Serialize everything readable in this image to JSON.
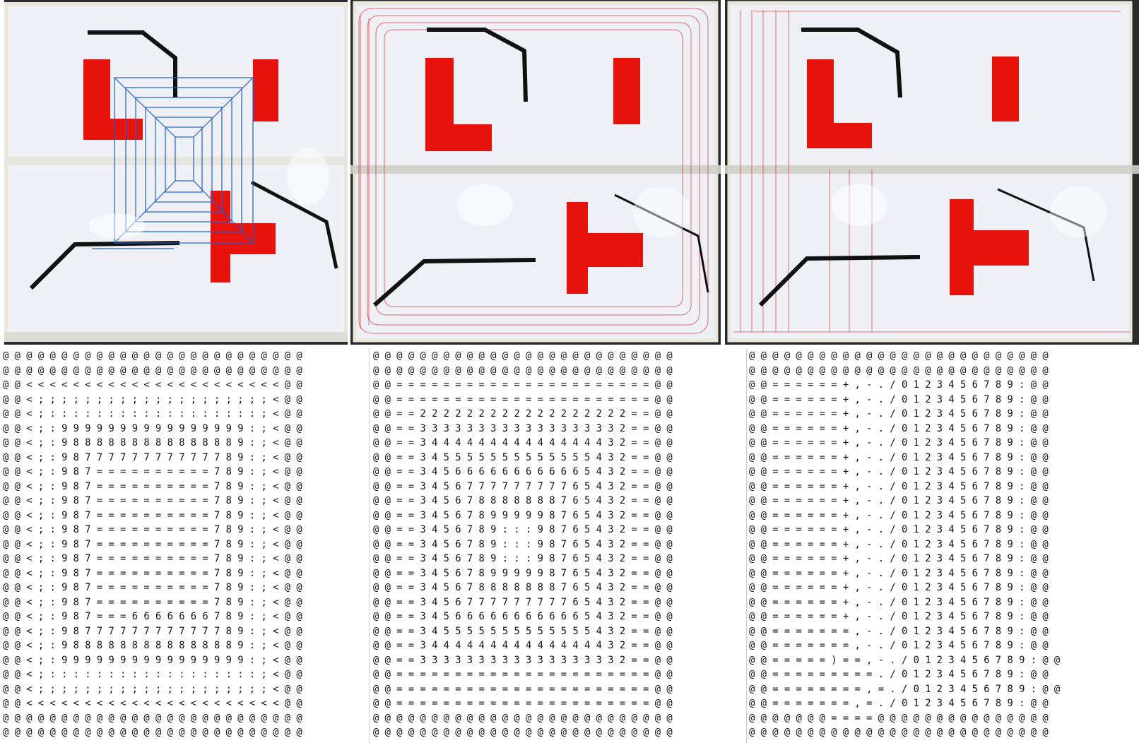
{
  "photos": [
    {
      "id": "photo-1",
      "trajectory": "blue spiral",
      "trajectory_color": "#1e5fd6"
    },
    {
      "id": "photo-2",
      "trajectory": "red concentric rings",
      "trajectory_color": "#e0232b"
    },
    {
      "id": "photo-3",
      "trajectory": "red vertical sweeps",
      "trajectory_color": "#e0232b"
    }
  ],
  "colors": {
    "obstacle": "#e8120c",
    "wall": "#111111",
    "board": "#eef0f6",
    "tape": "#e9e7da"
  },
  "grids": [
    [
      "@ @ @ @ @ @ @ @ @ @ @ @ @ @ @ @ @ @ @ @ @ @ @ @ @ @",
      "@ @ @ @ @ @ @ @ @ @ @ @ @ @ @ @ @ @ @ @ @ @ @ @ @ @",
      "@ @ < < < < < < < < < < < < < < < < < < < < < < @ @",
      "@ @ < ; ; ; ; ; ; ; ; ; ; ; ; ; ; ; ; ; ; ; ; < @ @",
      "@ @ < ; : : : : : : : : : : : : : : : : : : ; < @ @",
      "@ @ < ; : 9 9 9 9 9 9 9 9 9 9 9 9 9 9 9 9 : ; < @ @",
      "@ @ < ; : 9 8 8 8 8 8 8 8 8 8 8 8 8 8 8 9 : ; < @ @",
      "@ @ < ; : 9 8 7 7 7 7 7 7 7 7 7 7 7 7 8 9 : ; < @ @",
      "@ @ < ; : 9 8 7 = = = = = = = = = = 7 8 9 : ; < @ @",
      "@ @ < ; : 9 8 7 = = = = = = = = = = 7 8 9 : ; < @ @",
      "@ @ < ; : 9 8 7 = = = = = = = = = = 7 8 9 : ; < @ @",
      "@ @ < ; : 9 8 7 = = = = = = = = = = 7 8 9 : ; < @ @",
      "@ @ < ; : 9 8 7 = = = = = = = = = = 7 8 9 : ; < @ @",
      "@ @ < ; : 9 8 7 = = = = = = = = = = 7 8 9 : ; < @ @",
      "@ @ < ; : 9 8 7 = = = = = = = = = = 7 8 9 : ; < @ @",
      "@ @ < ; : 9 8 7 = = = = = = = = = = 7 8 9 : ; < @ @",
      "@ @ < ; : 9 8 7 = = = = = = = = = = 7 8 9 : ; < @ @",
      "@ @ < ; : 9 8 7 = = = = = = = = = = 7 8 9 : ; < @ @",
      "@ @ < ; : 9 8 7 = = = 6 6 6 6 6 6 6 7 8 9 : ; < @ @",
      "@ @ < ; : 9 8 7 7 7 7 7 7 7 7 7 7 7 7 8 9 : ; < @ @",
      "@ @ < ; : 9 8 8 8 8 8 8 8 8 8 8 8 8 8 8 9 : ; < @ @",
      "@ @ < ; : 9 9 9 9 9 9 9 9 9 9 9 9 9 9 9 9 : ; < @ @",
      "@ @ < ; : : : : : : : : : : : : : : : : : : ; < @ @",
      "@ @ < ; ; ; ; ; ; ; ; ; ; ; ; ; ; ; ; ; ; ; ; < @ @",
      "@ @ < < < < < < < < < < < < < < < < < < < < < < @ @",
      "@ @ @ @ @ @ @ @ @ @ @ @ @ @ @ @ @ @ @ @ @ @ @ @ @ @",
      "@ @ @ @ @ @ @ @ @ @ @ @ @ @ @ @ @ @ @ @ @ @ @ @ @ @"
    ],
    [
      "@ @ @ @ @ @ @ @ @ @ @ @ @ @ @ @ @ @ @ @ @ @ @ @ @ @",
      "@ @ @ @ @ @ @ @ @ @ @ @ @ @ @ @ @ @ @ @ @ @ @ @ @ @",
      "@ @ = = = = = = = = = = = = = = = = = = = = = = @ @",
      "@ @ = = = = = = = = = = = = = = = = = = = = = = @ @",
      "@ @ = = 2 2 2 2 2 2 2 2 2 2 2 2 2 2 2 2 2 2 = = @ @",
      "@ @ = = 3 3 3 3 3 3 3 3 3 3 3 3 3 3 3 3 3 2 = = @ @",
      "@ @ = = 3 4 4 4 4 4 4 4 4 4 4 4 4 4 4 4 3 2 = = @ @",
      "@ @ = = 3 4 5 5 5 5 5 5 5 5 5 5 5 5 5 4 3 2 = = @ @",
      "@ @ = = 3 4 5 6 6 6 6 6 6 6 6 6 6 6 5 4 3 2 = = @ @",
      "@ @ = = 3 4 5 6 7 7 7 7 7 7 7 7 7 6 5 4 3 2 = = @ @",
      "@ @ = = 3 4 5 6 7 8 8 8 8 8 8 8 7 6 5 4 3 2 = = @ @",
      "@ @ = = 3 4 5 6 7 8 9 9 9 9 9 8 7 6 5 4 3 2 = = @ @",
      "@ @ = = 3 4 5 6 7 8 9 : : : 9 8 7 6 5 4 3 2 = = @ @",
      "@ @ = = 3 4 5 6 7 8 9 : : : 9 8 7 6 5 4 3 2 = = @ @",
      "@ @ = = 3 4 5 6 7 8 9 : : : 9 8 7 6 5 4 3 2 = = @ @",
      "@ @ = = 3 4 5 6 7 8 9 9 9 9 9 8 7 6 5 4 3 2 = = @ @",
      "@ @ = = 3 4 5 6 7 8 8 8 8 8 8 8 7 6 5 4 3 2 = = @ @",
      "@ @ = = 3 4 5 6 7 7 7 7 7 7 7 7 7 6 5 4 3 2 = = @ @",
      "@ @ = = 3 4 5 6 6 6 6 6 6 6 6 6 6 6 5 4 3 2 = = @ @",
      "@ @ = = 3 4 5 5 5 5 5 5 5 5 5 5 5 5 5 4 3 2 = = @ @",
      "@ @ = = 3 4 4 4 4 4 4 4 4 4 4 4 4 4 4 4 3 2 = = @ @",
      "@ @ = = 3 3 3 3 3 3 3 3 3 3 3 3 3 3 3 3 3 2 = = @ @",
      "@ @ = = = = = = = = = = = = = = = = = = = = = = @ @",
      "@ @ = = = = = = = = = = = = = = = = = = = = = = @ @",
      "@ @ = = = = = = = = = = = = = = = = = = = = = = @ @",
      "@ @ @ @ @ @ @ @ @ @ @ @ @ @ @ @ @ @ @ @ @ @ @ @ @ @",
      "@ @ @ @ @ @ @ @ @ @ @ @ @ @ @ @ @ @ @ @ @ @ @ @ @ @"
    ],
    [
      "@ @ @ @ @ @ @ @ @ @ @ @ @ @ @ @ @ @ @ @ @ @ @ @ @ @",
      "@ @ @ @ @ @ @ @ @ @ @ @ @ @ @ @ @ @ @ @ @ @ @ @ @ @",
      "@ @ = = = = = = + , - . / 0 1 2 3 4 5 6 7 8 9 : @ @",
      "@ @ = = = = = = + , - . / 0 1 2 3 4 5 6 7 8 9 : @ @",
      "@ @ = = = = = = + , - . / 0 1 2 3 4 5 6 7 8 9 : @ @",
      "@ @ = = = = = = + , - . / 0 1 2 3 4 5 6 7 8 9 : @ @",
      "@ @ = = = = = = + , - . / 0 1 2 3 4 5 6 7 8 9 : @ @",
      "@ @ = = = = = = + , - . / 0 1 2 3 4 5 6 7 8 9 : @ @",
      "@ @ = = = = = = + , - . / 0 1 2 3 4 5 6 7 8 9 : @ @",
      "@ @ = = = = = = + , - . / 0 1 2 3 4 5 6 7 8 9 : @ @",
      "@ @ = = = = = = + , - . / 0 1 2 3 4 5 6 7 8 9 : @ @",
      "@ @ = = = = = = + , - . / 0 1 2 3 4 5 6 7 8 9 : @ @",
      "@ @ = = = = = = + , - . / 0 1 2 3 4 5 6 7 8 9 : @ @",
      "@ @ = = = = = = + , - . / 0 1 2 3 4 5 6 7 8 9 : @ @",
      "@ @ = = = = = = + , - . / 0 1 2 3 4 5 6 7 8 9 : @ @",
      "@ @ = = = = = = + , - . / 0 1 2 3 4 5 6 7 8 9 : @ @",
      "@ @ = = = = = = + , - . / 0 1 2 3 4 5 6 7 8 9 : @ @",
      "@ @ = = = = = = + , - . / 0 1 2 3 4 5 6 7 8 9 : @ @",
      "@ @ = = = = = = + , - . / 0 1 2 3 4 5 6 7 8 9 : @ @",
      "@ @ = = = = = = = , - . / 0 1 2 3 4 5 6 7 8 9 : @ @",
      "@ @ = = = = = = = , - . / 0 1 2 3 4 5 6 7 8 9 : @ @",
      "@ @ = = = = = ) = = , - . / 0 1 2 3 4 5 6 7 8 9 : @ @",
      "@ @ = = = = = = = = = . / 0 1 2 3 4 5 6 7 8 9 : @ @",
      "@ @ = = = = = = = = , = . / 0 1 2 3 4 5 6 7 8 9 : @ @",
      "@ @ = = = = = = = , = . / 0 1 2 3 4 5 6 7 8 9 : @ @",
      "@ @ @ @ @ @ @ = = = = @ @ @ @ @ @ @ @ @ @ @ @ @ @ @",
      "@ @ @ @ @ @ @ @ @ @ @ @ @ @ @ @ @ @ @ @ @ @ @ @ @ @"
    ]
  ]
}
